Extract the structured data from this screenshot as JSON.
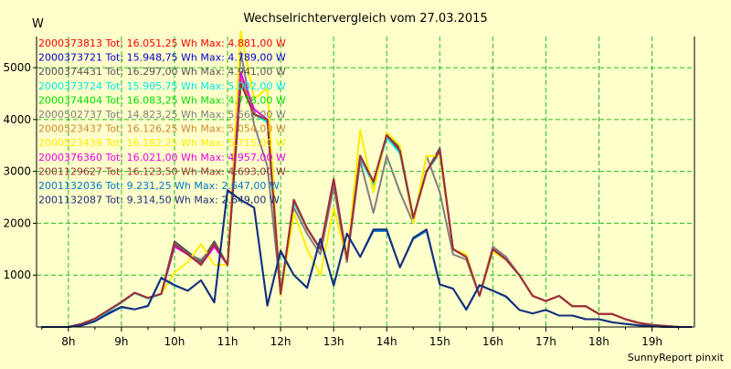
{
  "chart_data": {
    "type": "line",
    "title": "Wechselrichtervergleich vom 27.03.2015",
    "ylabel": "W",
    "xlabel": "",
    "footer": "SunnyReport pinxit",
    "ylim": [
      0,
      5600
    ],
    "y_ticks": [
      "1000",
      "2000",
      "3000",
      "4000",
      "5000"
    ],
    "y_tick_values": [
      1000,
      2000,
      3000,
      4000,
      5000
    ],
    "x_ticks": [
      "8h",
      "9h",
      "10h",
      "11h",
      "12h",
      "13h",
      "14h",
      "15h",
      "16h",
      "17h",
      "18h",
      "19h"
    ],
    "x_tick_hours": [
      8,
      9,
      10,
      11,
      12,
      13,
      14,
      15,
      16,
      17,
      18,
      19
    ],
    "xlim": [
      7.4,
      19.8
    ],
    "grid": true,
    "interval_hours": 0.25,
    "start_hour": 7.5,
    "series": [
      {
        "name": "2000373813",
        "legend": "2000373813 Tot: 16.051,25 Wh Max: 4.881,00 W",
        "color": "#ff0000",
        "values": [
          0,
          0,
          0,
          60,
          160,
          320,
          480,
          660,
          560,
          640,
          1600,
          1400,
          1200,
          1600,
          1200,
          4750,
          4100,
          4000,
          640,
          2450,
          1900,
          1500,
          2850,
          1300,
          3300,
          2800,
          3700,
          3400,
          2100,
          3000,
          3400,
          1500,
          1350,
          600,
          1500,
          1300,
          1000,
          600,
          500,
          600,
          400,
          400,
          250,
          250,
          150,
          80,
          40,
          20,
          0,
          0
        ]
      },
      {
        "name": "2000373721",
        "legend": "2000373721 Tot: 15.948,75 Wh Max: 4.789,00 W",
        "color": "#0000cc",
        "values": [
          0,
          0,
          0,
          60,
          160,
          320,
          480,
          660,
          560,
          640,
          1600,
          1400,
          1200,
          1600,
          1200,
          4700,
          4100,
          4000,
          640,
          2450,
          1900,
          1500,
          2850,
          1300,
          3250,
          2800,
          3650,
          3400,
          2100,
          3000,
          3400,
          1500,
          1350,
          600,
          1500,
          1300,
          1000,
          600,
          500,
          600,
          400,
          400,
          250,
          250,
          150,
          80,
          40,
          20,
          0,
          0
        ]
      },
      {
        "name": "2000374431",
        "legend": "2000374431 Tot: 16.297,00 Wh Max: 4.941,00 W",
        "color": "#555555",
        "values": [
          0,
          0,
          0,
          60,
          160,
          320,
          480,
          660,
          560,
          640,
          1650,
          1450,
          1250,
          1650,
          1200,
          4900,
          4100,
          4000,
          640,
          2450,
          1900,
          1500,
          2850,
          1300,
          3300,
          2800,
          3700,
          3450,
          2100,
          3000,
          3450,
          1500,
          1350,
          600,
          1500,
          1300,
          1000,
          600,
          500,
          600,
          400,
          400,
          250,
          250,
          150,
          80,
          40,
          20,
          0,
          0
        ]
      },
      {
        "name": "2000373724",
        "legend": "2000373724 Tot: 15.905,75 Wh Max: 5.002,00 W",
        "color": "#00e8e8",
        "values": [
          0,
          0,
          0,
          40,
          130,
          300,
          470,
          650,
          550,
          630,
          1550,
          1400,
          1200,
          1600,
          1200,
          4800,
          4100,
          3950,
          640,
          2400,
          1900,
          1500,
          2800,
          1300,
          3250,
          2750,
          3650,
          3350,
          2100,
          3000,
          3350,
          1500,
          1350,
          600,
          1500,
          1300,
          1000,
          600,
          500,
          600,
          400,
          400,
          250,
          250,
          150,
          80,
          40,
          20,
          0,
          0
        ]
      },
      {
        "name": "2000374404",
        "legend": "2000374404 Tot: 16.083,25 Wh Max: 4.778,00 W",
        "color": "#00dd00",
        "values": [
          0,
          0,
          0,
          60,
          160,
          320,
          480,
          660,
          560,
          640,
          1600,
          1400,
          1200,
          1600,
          1200,
          4700,
          4100,
          4000,
          640,
          2450,
          1900,
          1500,
          2850,
          1300,
          3300,
          2800,
          3700,
          3400,
          2100,
          3000,
          3400,
          1500,
          1350,
          600,
          1500,
          1300,
          1000,
          600,
          500,
          600,
          400,
          400,
          250,
          250,
          150,
          80,
          40,
          20,
          0,
          0
        ]
      },
      {
        "name": "2000502737",
        "legend": "2000502737 Tot: 14.823,25 Wh Max: 5.660,00 W",
        "color": "#808080",
        "values": [
          0,
          0,
          0,
          60,
          160,
          320,
          480,
          660,
          560,
          640,
          1600,
          1400,
          1300,
          1550,
          1200,
          5300,
          3900,
          3100,
          640,
          2300,
          1800,
          1400,
          2700,
          1250,
          3200,
          2200,
          3300,
          2600,
          2000,
          3300,
          2600,
          1400,
          1300,
          600,
          1550,
          1350,
          1000,
          600,
          500,
          600,
          400,
          400,
          250,
          250,
          150,
          80,
          40,
          20,
          0,
          0
        ]
      },
      {
        "name": "2000523437",
        "legend": "2000523437 Tot: 16.126,25 Wh Max: 5.054,00 W",
        "color": "#cc8833",
        "values": [
          0,
          0,
          0,
          60,
          160,
          320,
          480,
          660,
          560,
          640,
          1600,
          1400,
          1200,
          1600,
          1200,
          4800,
          4100,
          4000,
          640,
          2450,
          1900,
          1500,
          2850,
          1300,
          3300,
          2800,
          3700,
          3400,
          2100,
          3000,
          3400,
          1500,
          1350,
          600,
          1500,
          1300,
          1000,
          600,
          500,
          600,
          400,
          400,
          250,
          250,
          150,
          80,
          40,
          20,
          0,
          0
        ]
      },
      {
        "name": "2000523439",
        "legend": "2000523439 Tot: 16.182,25 Wh Max: 5.715,00 W",
        "color": "#ffee00",
        "values": [
          0,
          0,
          0,
          60,
          160,
          320,
          480,
          660,
          560,
          640,
          1050,
          1250,
          1600,
          1200,
          1200,
          5700,
          4400,
          4600,
          600,
          2200,
          1500,
          1000,
          2300,
          1300,
          3800,
          2600,
          3750,
          3500,
          2000,
          3300,
          3300,
          1500,
          1400,
          600,
          1450,
          1300,
          1000,
          600,
          500,
          600,
          400,
          400,
          250,
          250,
          150,
          80,
          40,
          20,
          0,
          0
        ]
      },
      {
        "name": "2000376360",
        "legend": "2000376360 Tot: 16.021,00 Wh Max: 4.957,00 W",
        "color": "#ee00ee",
        "values": [
          0,
          0,
          0,
          60,
          160,
          320,
          480,
          660,
          560,
          640,
          1550,
          1400,
          1200,
          1550,
          1200,
          4900,
          4200,
          4000,
          640,
          2450,
          1900,
          1500,
          2850,
          1300,
          3300,
          2800,
          3700,
          3400,
          2100,
          3000,
          3400,
          1500,
          1350,
          600,
          1500,
          1300,
          1000,
          600,
          500,
          600,
          400,
          400,
          250,
          250,
          150,
          80,
          40,
          20,
          0,
          0
        ]
      },
      {
        "name": "2001129627",
        "legend": "2001129627 Tot: 16.123,50 Wh Max: 4.693,00 W",
        "color": "#993333",
        "values": [
          0,
          0,
          0,
          60,
          160,
          320,
          480,
          660,
          560,
          640,
          1600,
          1400,
          1200,
          1600,
          1200,
          4700,
          4100,
          4000,
          640,
          2450,
          1900,
          1500,
          2850,
          1300,
          3300,
          2800,
          3700,
          3400,
          2100,
          3000,
          3400,
          1500,
          1350,
          600,
          1500,
          1300,
          1000,
          600,
          500,
          600,
          400,
          400,
          250,
          250,
          150,
          80,
          40,
          20,
          0,
          0
        ]
      },
      {
        "name": "2001132036",
        "legend": "2001132036 Tot: 9.231,25 Wh Max: 2.647,00 W",
        "color": "#0077cc",
        "values": [
          0,
          0,
          0,
          30,
          110,
          250,
          380,
          340,
          400,
          940,
          800,
          700,
          900,
          480,
          2620,
          2450,
          2300,
          420,
          1450,
          1000,
          750,
          1700,
          800,
          1800,
          1350,
          1850,
          1850,
          1150,
          1700,
          1850,
          820,
          740,
          330,
          800,
          700,
          580,
          330,
          260,
          330,
          220,
          220,
          150,
          150,
          90,
          60,
          30,
          15,
          0,
          0,
          0
        ]
      },
      {
        "name": "2001132087",
        "legend": "2001132087 Tot: 9.314,50 Wh Max: 2.649,00 W",
        "color": "#1a2d7a",
        "values": [
          0,
          0,
          0,
          30,
          110,
          260,
          390,
          340,
          410,
          950,
          810,
          700,
          900,
          470,
          2640,
          2450,
          2300,
          410,
          1470,
          1000,
          760,
          1700,
          800,
          1800,
          1350,
          1880,
          1880,
          1150,
          1720,
          1880,
          820,
          740,
          340,
          810,
          700,
          590,
          330,
          260,
          330,
          220,
          220,
          150,
          150,
          90,
          60,
          30,
          15,
          0,
          0,
          0
        ]
      }
    ]
  }
}
